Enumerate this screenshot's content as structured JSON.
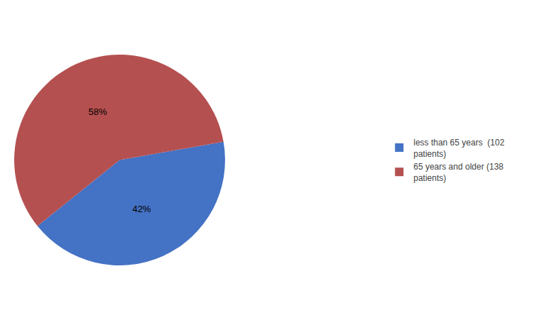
{
  "chart_data": {
    "type": "pie",
    "categories": [
      "less than 65 years  (102\npatients)",
      "65 years and older (138\npatients)"
    ],
    "values": [
      42,
      58
    ],
    "value_labels": [
      "42%",
      "58%"
    ],
    "colors": [
      "#4472C4",
      "#B55050"
    ],
    "data_labels": true,
    "legend": "right"
  }
}
